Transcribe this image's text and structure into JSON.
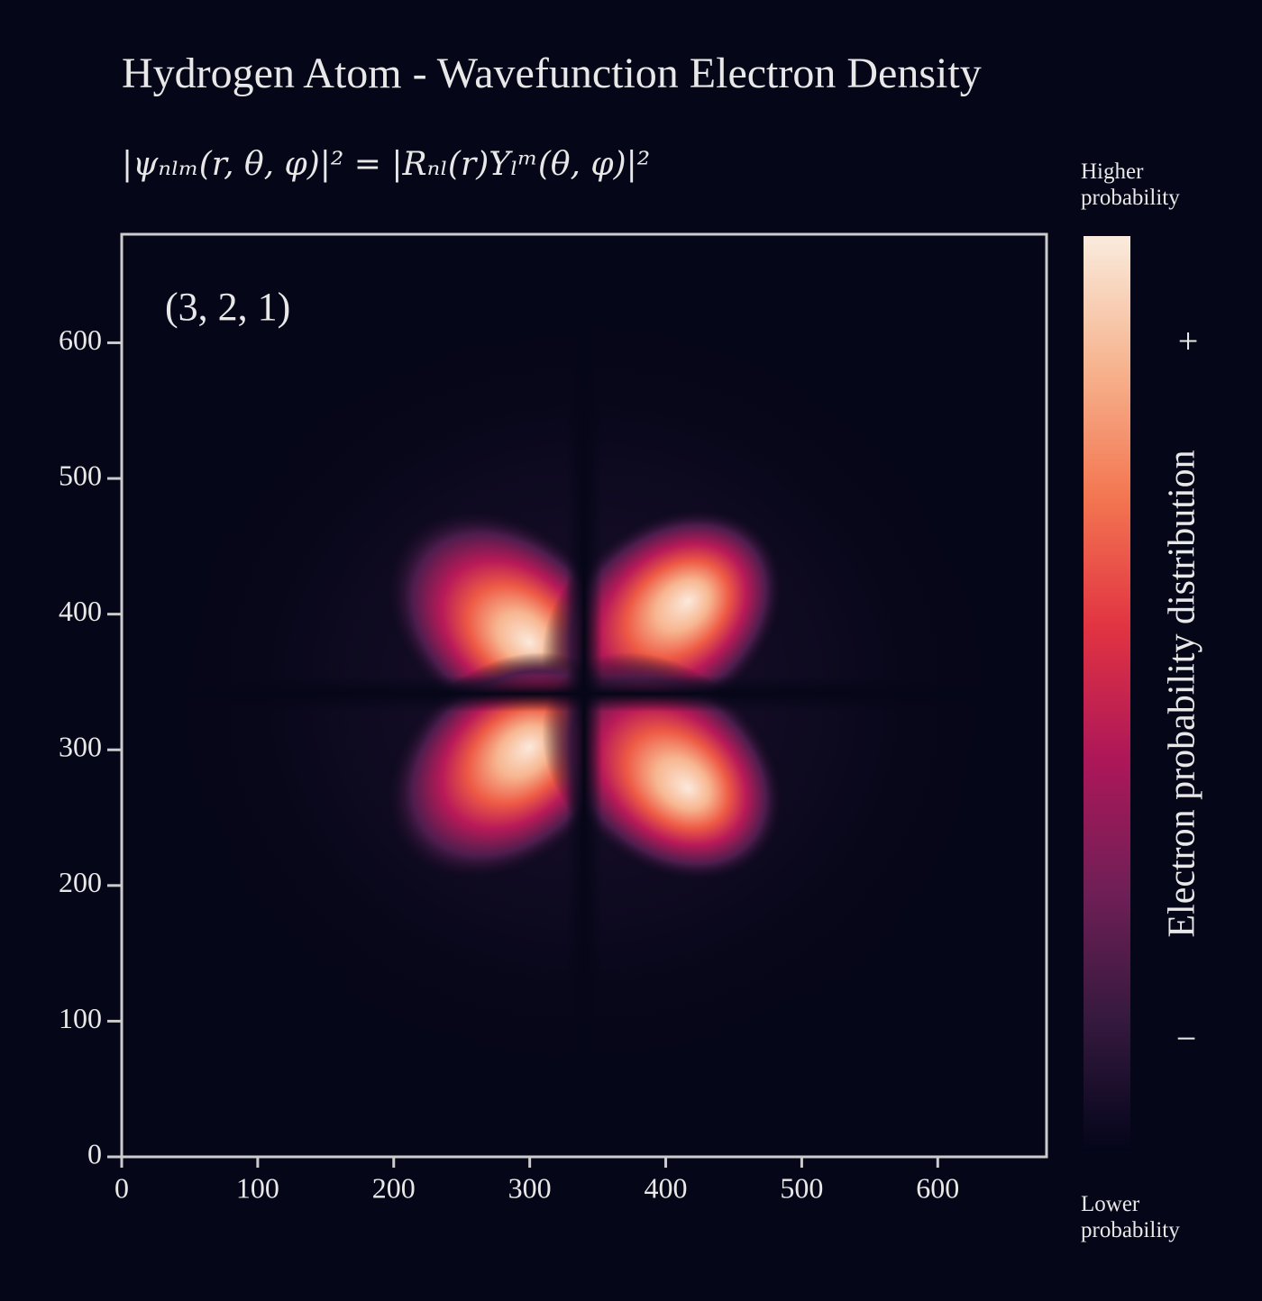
{
  "chart_data": {
    "type": "heatmap",
    "title": "Hydrogen Atom - Wavefunction Electron Density",
    "subtitle": "|ψₙₗₘ(r, θ, φ)|² = |Rₙₗ(r)Yₗᵐ(θ, φ)|²",
    "annotation": "(3, 2, 1)",
    "xlim": [
      0,
      680
    ],
    "ylim": [
      0,
      680
    ],
    "xticks": [
      0,
      100,
      200,
      300,
      400,
      500,
      600
    ],
    "yticks": [
      0,
      100,
      200,
      300,
      400,
      500,
      600
    ],
    "colorbar": {
      "label": "Electron probability distribution",
      "top_label": "Higher probability",
      "bottom_label": "Lower probability",
      "plus": "+",
      "minus": "−",
      "colors": [
        "#faebdd",
        "#f6b48f",
        "#f37651",
        "#e13342",
        "#ad1759",
        "#701f57",
        "#35193e",
        "#03051a"
      ]
    }
  }
}
